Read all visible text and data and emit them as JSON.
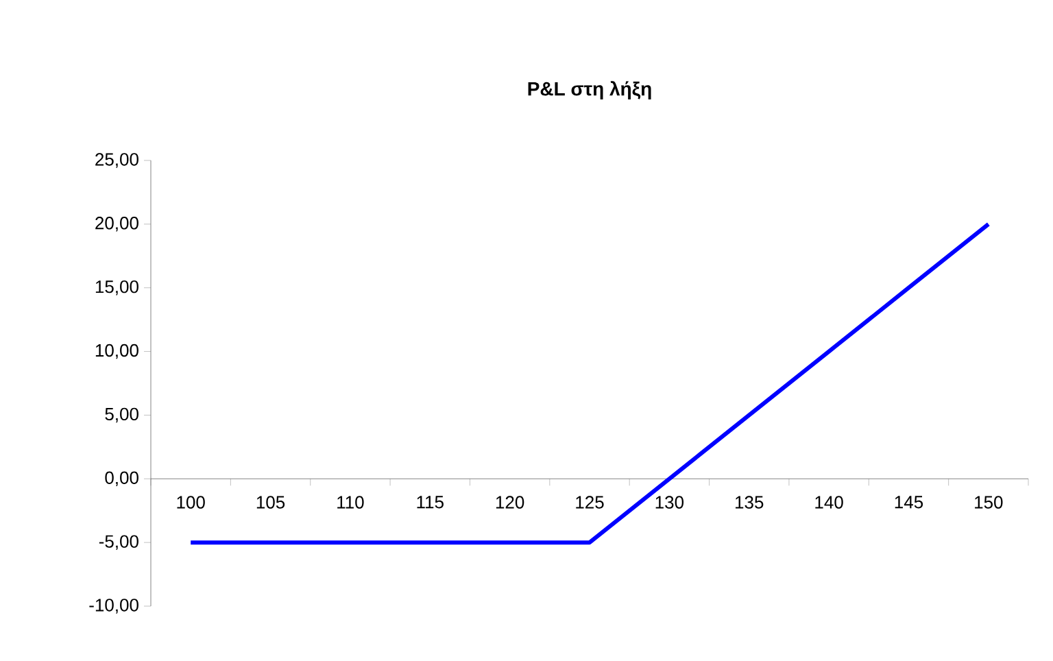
{
  "chart_data": {
    "type": "line",
    "title": "P&L στη λήξη",
    "categories": [
      "100",
      "105",
      "110",
      "115",
      "120",
      "125",
      "130",
      "135",
      "140",
      "145",
      "150"
    ],
    "series": [
      {
        "color": "#0000ff",
        "values": [
          -5,
          -5,
          -5,
          -5,
          -5,
          -5,
          0,
          5,
          10,
          15,
          20
        ]
      }
    ],
    "ylim": [
      -10,
      25
    ],
    "yticks": [
      {
        "value": -10,
        "label": "-10,00"
      },
      {
        "value": -5,
        "label": "-5,00"
      },
      {
        "value": 0,
        "label": "0,00"
      },
      {
        "value": 5,
        "label": "5,00"
      },
      {
        "value": 10,
        "label": "10,00"
      },
      {
        "value": 15,
        "label": "15,00"
      },
      {
        "value": 20,
        "label": "20,00"
      },
      {
        "value": 25,
        "label": "25,00"
      }
    ],
    "grid": false,
    "legend": false,
    "marker": "none",
    "line_style": "solid"
  }
}
